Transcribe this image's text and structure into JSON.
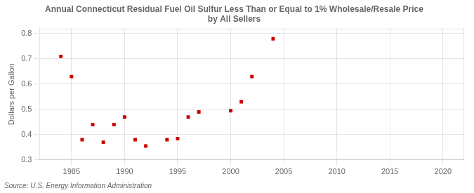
{
  "chart_data": {
    "type": "scatter",
    "title": "Annual Connecticut Residual Fuel Oil Sulfur Less Than or Equal to 1% Wholesale/Resale Price\nby All Sellers",
    "ylabel": "Dollars per Gallon",
    "source": "Source: U.S. Energy Information Administration",
    "x": [
      1984,
      1985,
      1986,
      1987,
      1988,
      1989,
      1990,
      1991,
      1992,
      1994,
      1995,
      1996,
      1997,
      2000,
      2001,
      2002,
      2004
    ],
    "values": [
      0.71,
      0.63,
      0.38,
      0.44,
      0.37,
      0.44,
      0.47,
      0.38,
      0.355,
      0.38,
      0.384,
      0.47,
      0.49,
      0.495,
      0.53,
      0.63,
      0.78
    ],
    "color": "#cc0000",
    "marker": "square",
    "xlim": [
      1982,
      2022
    ],
    "ylim": [
      0.3,
      0.82
    ],
    "xticks": [
      1985,
      1990,
      1995,
      2000,
      2005,
      2010,
      2015,
      2020
    ],
    "yticks": [
      0.3,
      0.4,
      0.5,
      0.6,
      0.7,
      0.8
    ],
    "grid": true
  }
}
